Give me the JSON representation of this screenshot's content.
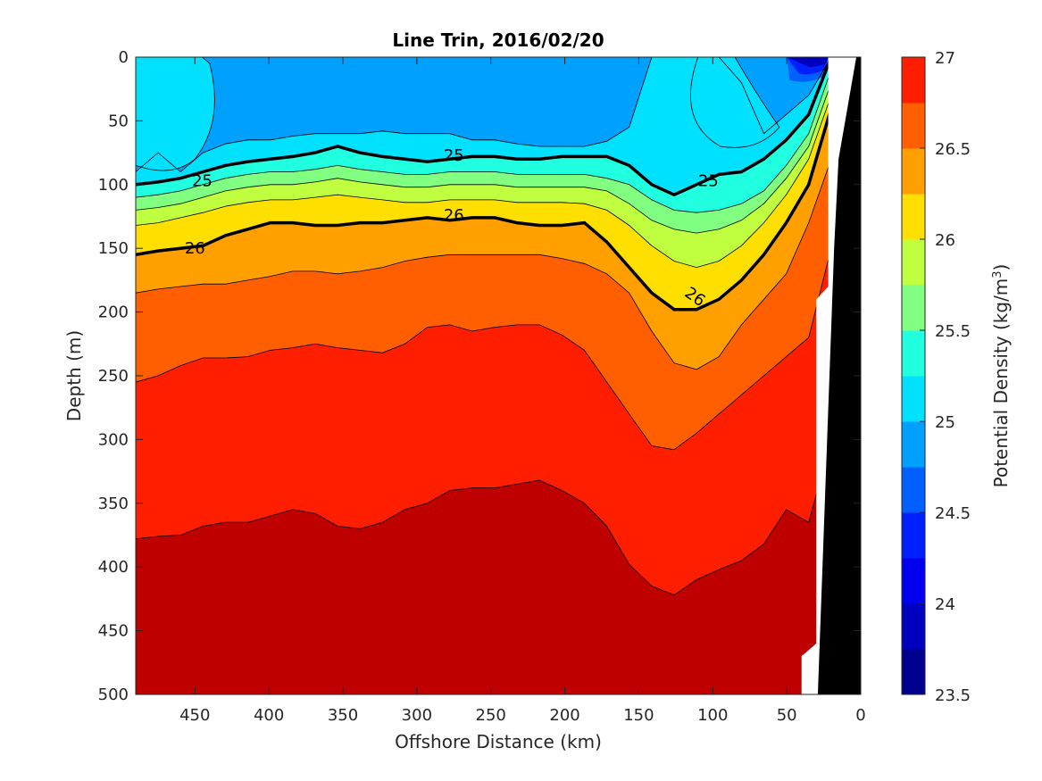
{
  "chart_data": {
    "type": "heatmap",
    "subtype": "filled-contour",
    "title": "Line Trin, 2016/02/20",
    "xlabel": "Offshore Distance (km)",
    "ylabel": "Depth (m)",
    "colorbar_label": "Potential Density (kg/m",
    "colorbar_label_sup": "3",
    "colorbar_label_close": ")",
    "xlim": [
      490,
      0
    ],
    "ylim": [
      0,
      500
    ],
    "x_reversed": true,
    "y_reversed": true,
    "x_ticks": [
      "450",
      "400",
      "350",
      "300",
      "250",
      "200",
      "150",
      "100",
      "50",
      "0"
    ],
    "x_tick_values": [
      450,
      400,
      350,
      300,
      250,
      200,
      150,
      100,
      50,
      0
    ],
    "y_ticks": [
      "0",
      "50",
      "100",
      "150",
      "200",
      "250",
      "300",
      "350",
      "400",
      "450",
      "500"
    ],
    "y_tick_values": [
      0,
      50,
      100,
      150,
      200,
      250,
      300,
      350,
      400,
      450,
      500
    ],
    "colorbar": {
      "range": [
        23.5,
        27
      ],
      "tick_labels": [
        "23.5",
        "24",
        "24.5",
        "25",
        "25.5",
        "26",
        "26.5",
        "27"
      ],
      "tick_values": [
        23.5,
        24,
        24.5,
        25,
        25.5,
        26,
        26.5,
        27
      ],
      "levels": [
        23.5,
        23.75,
        24,
        24.25,
        24.5,
        24.75,
        25,
        25.25,
        25.5,
        25.75,
        26,
        26.25,
        26.5,
        26.75,
        27
      ],
      "colors": [
        "#00008f",
        "#0000bf",
        "#0000ef",
        "#0020ff",
        "#0060ff",
        "#00a0ff",
        "#00e0ff",
        "#20ffdf",
        "#80ff80",
        "#bfff40",
        "#ffdf00",
        "#ffa000",
        "#ff5f00",
        "#ff1f00",
        "#bf0000"
      ]
    },
    "isopycnals": [
      {
        "level": "24.75",
        "color": "#00a0ff",
        "depth": [
          90,
          75,
          90,
          75,
          68,
          65,
          65,
          62,
          60,
          60,
          60,
          58,
          60,
          60,
          60,
          65,
          65,
          68,
          70,
          70,
          70,
          66,
          55,
          0,
          0,
          0,
          0,
          20,
          60,
          45,
          30,
          0
        ]
      },
      {
        "level": "25.0",
        "color": "#00e0ff",
        "depth": [
          100,
          98,
          95,
          90,
          85,
          82,
          80,
          78,
          75,
          70,
          75,
          78,
          80,
          82,
          80,
          78,
          78,
          80,
          80,
          78,
          78,
          78,
          85,
          100,
          108,
          100,
          92,
          90,
          80,
          65,
          45,
          0
        ]
      },
      {
        "level": "25.25",
        "color": "#20ffdf",
        "depth": [
          110,
          108,
          105,
          100,
          95,
          92,
          90,
          90,
          88,
          85,
          88,
          90,
          92,
          92,
          90,
          90,
          90,
          92,
          92,
          92,
          92,
          95,
          100,
          112,
          120,
          122,
          120,
          115,
          105,
          85,
          60,
          10
        ]
      },
      {
        "level": "25.5",
        "color": "#80ff80",
        "depth": [
          120,
          118,
          115,
          110,
          105,
          102,
          100,
          100,
          98,
          95,
          98,
          100,
          102,
          102,
          100,
          100,
          100,
          102,
          102,
          102,
          102,
          105,
          115,
          128,
          135,
          138,
          135,
          128,
          115,
          95,
          70,
          20
        ]
      },
      {
        "level": "25.75",
        "color": "#bfff40",
        "depth": [
          132,
          130,
          126,
          122,
          117,
          114,
          112,
          112,
          110,
          108,
          110,
          112,
          114,
          114,
          112,
          112,
          112,
          114,
          114,
          114,
          115,
          120,
          132,
          148,
          160,
          165,
          160,
          148,
          130,
          108,
          80,
          30
        ]
      },
      {
        "level": "26.0",
        "color": "#ffdf00",
        "depth": [
          155,
          152,
          150,
          148,
          140,
          135,
          130,
          130,
          132,
          132,
          130,
          130,
          128,
          126,
          128,
          126,
          126,
          130,
          132,
          132,
          130,
          145,
          165,
          185,
          198,
          198,
          190,
          175,
          155,
          130,
          100,
          40
        ]
      },
      {
        "level": "26.25",
        "color": "#ffa000",
        "depth": [
          185,
          182,
          180,
          178,
          178,
          175,
          172,
          168,
          168,
          170,
          168,
          165,
          160,
          157,
          155,
          155,
          155,
          155,
          155,
          158,
          162,
          170,
          185,
          215,
          240,
          245,
          235,
          210,
          190,
          170,
          130,
          80
        ]
      },
      {
        "level": "26.5",
        "color": "#ff5f00",
        "depth": [
          255,
          250,
          242,
          236,
          236,
          235,
          230,
          228,
          225,
          228,
          230,
          232,
          225,
          212,
          210,
          215,
          212,
          210,
          210,
          218,
          230,
          255,
          280,
          305,
          308,
          295,
          280,
          265,
          250,
          235,
          220,
          150
        ]
      },
      {
        "level": "26.75",
        "color": "#ff1f00",
        "depth": [
          378,
          376,
          375,
          368,
          365,
          365,
          360,
          355,
          358,
          368,
          370,
          365,
          355,
          350,
          340,
          338,
          338,
          335,
          332,
          340,
          350,
          368,
          398,
          415,
          422,
          410,
          402,
          395,
          382,
          355,
          365,
          300
        ]
      }
    ],
    "bold_contours": [
      {
        "label": "25",
        "level": 25,
        "label_positions": [
          [
            445,
            97
          ],
          [
            275,
            77
          ],
          [
            103,
            97
          ]
        ]
      },
      {
        "label": "26",
        "level": 26,
        "label_positions": [
          [
            450,
            150
          ],
          [
            275,
            124
          ],
          [
            112,
            188
          ]
        ]
      }
    ],
    "highlight_max_density": "27",
    "shallow_min_note": "23.5"
  }
}
